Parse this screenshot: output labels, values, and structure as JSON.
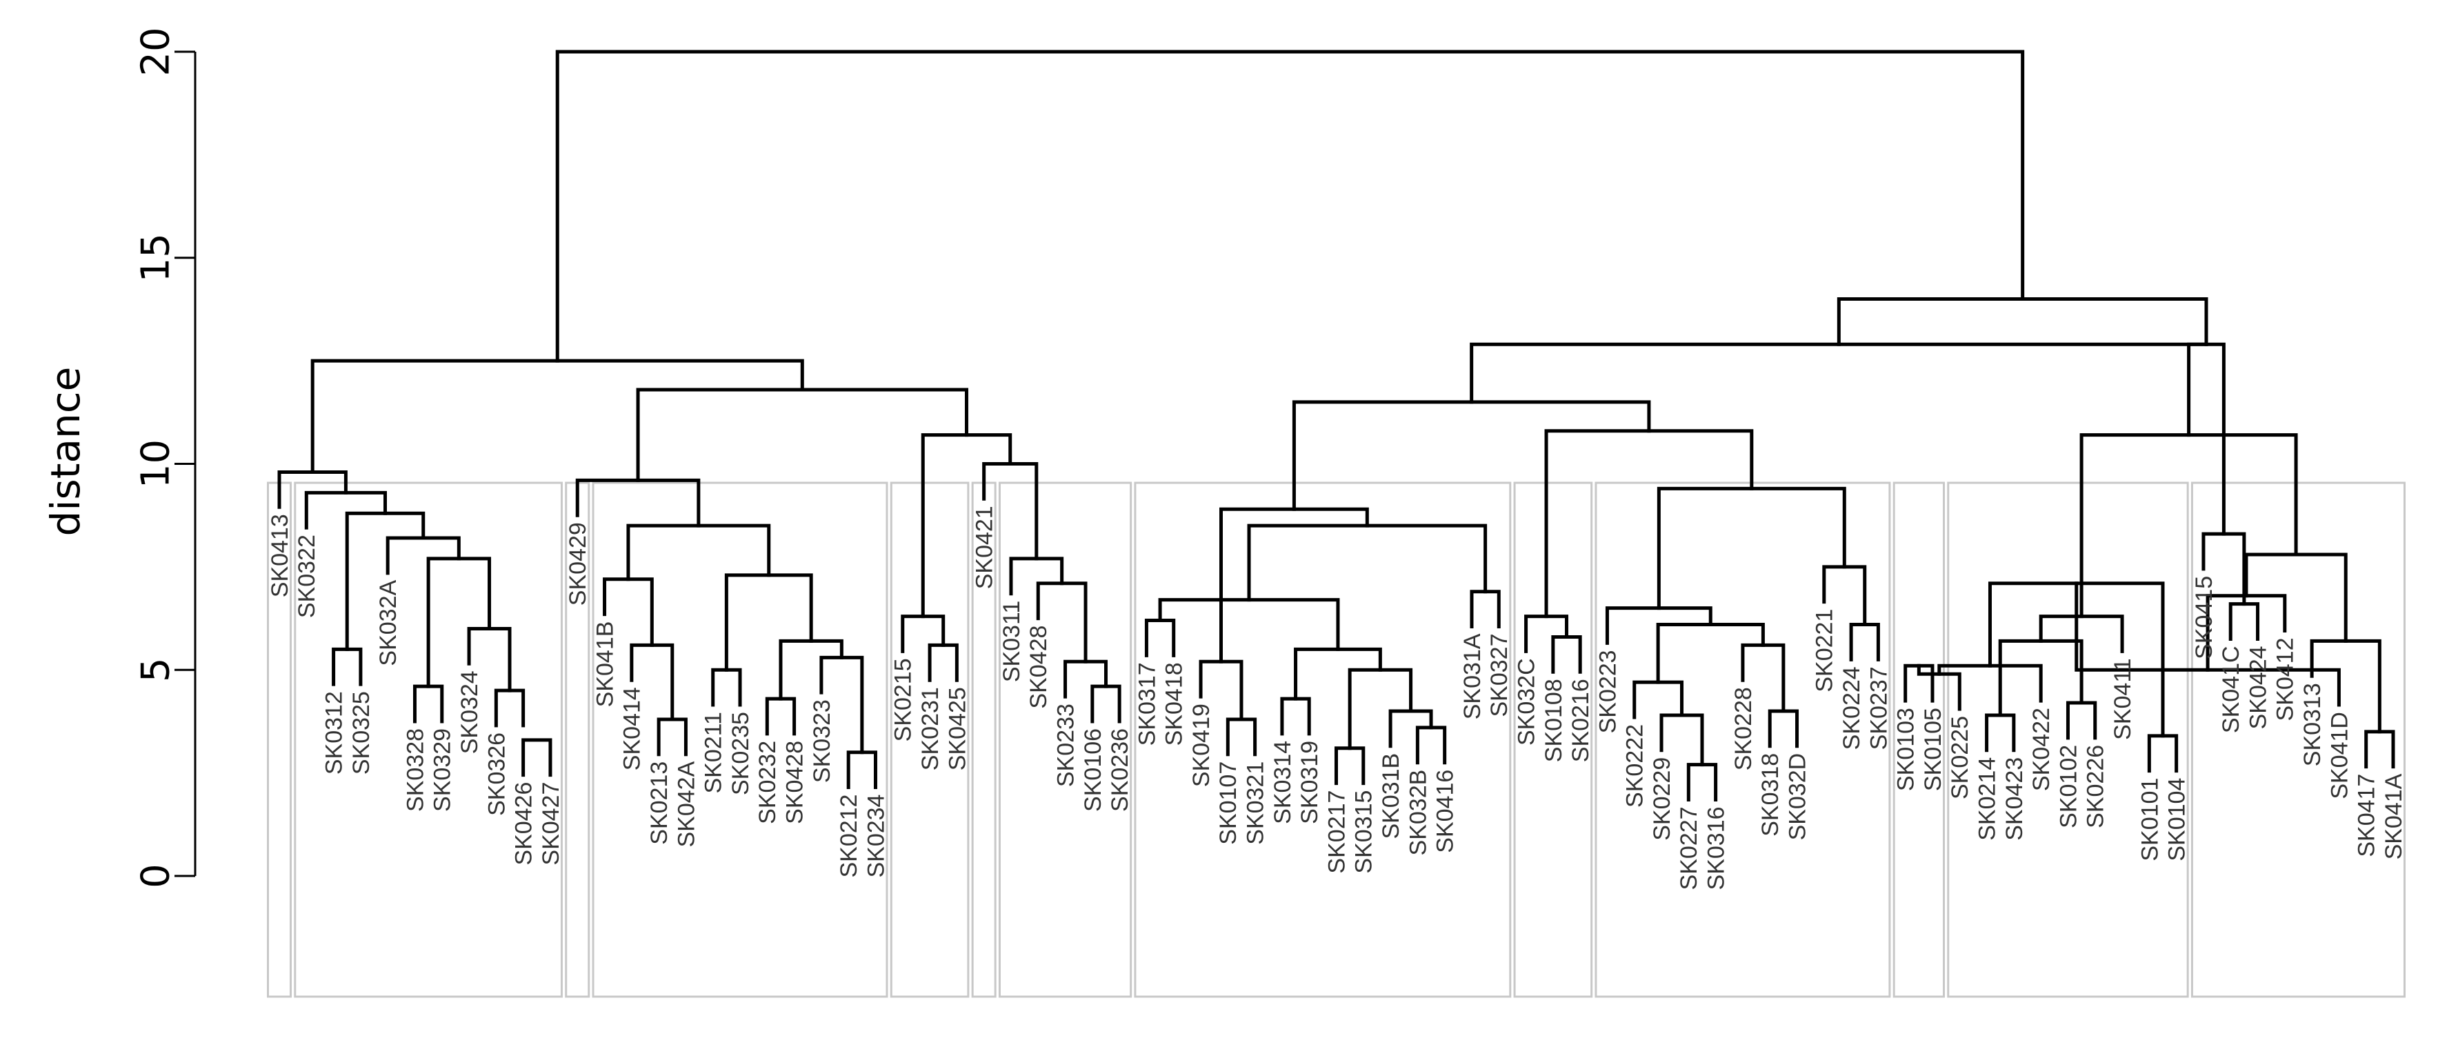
{
  "chart_data": {
    "type": "dendrogram",
    "ylabel": "distance",
    "ylim": [
      0,
      20
    ],
    "yticks": [
      0,
      5,
      10,
      15,
      20
    ],
    "leaves": [
      "SK0413",
      "SK0322",
      "SK0312",
      "SK0325",
      "SK032A",
      "SK0328",
      "SK0329",
      "SK0324",
      "SK0326",
      "SK0426",
      "SK0427",
      "SK0429",
      "SK041B",
      "SK0414",
      "SK0213",
      "SK042A",
      "SK0211",
      "SK0235",
      "SK0232",
      "SK0428",
      "SK0323",
      "SK0212",
      "SK0234",
      "SK0215",
      "SK0231",
      "SK0425",
      "SK0421",
      "SK0311",
      "SK0428",
      "SK0233",
      "SK0106",
      "SK0236",
      "SK0317",
      "SK0418",
      "SK0419",
      "SK0107",
      "SK0321",
      "SK0314",
      "SK0319",
      "SK0217",
      "SK0315",
      "SK031B",
      "SK032B",
      "SK0416",
      "SK031A",
      "SK0327",
      "SK032C",
      "SK0108",
      "SK0216",
      "SK0223",
      "SK0222",
      "SK0229",
      "SK0227",
      "SK0316",
      "SK0228",
      "SK0318",
      "SK032D",
      "SK0221",
      "SK0224",
      "SK0237",
      "SK0103",
      "SK0105",
      "SK0225",
      "SK0214",
      "SK0423",
      "SK0422",
      "SK0102",
      "SK0226",
      "SK0411",
      "SK0101",
      "SK0104",
      "SK0415",
      "SK041C",
      "SK0424",
      "SK0412",
      "SK0313",
      "SK041D",
      "SK0417",
      "SK041A"
    ],
    "merges": [
      [
        -6,
        -7,
        4.6
      ],
      [
        -9,
        -10,
        4.5
      ],
      [
        -10,
        -11,
        3.3
      ],
      [
        -3,
        -4,
        5.5
      ],
      [
        -8,
        2,
        6.0
      ],
      [
        1,
        5,
        7.7
      ],
      [
        -5,
        6,
        8.2
      ],
      [
        4,
        7,
        8.8
      ],
      [
        -2,
        8,
        9.3
      ],
      [
        -1,
        9,
        9.8
      ],
      [
        -15,
        -16,
        3.8
      ],
      [
        -14,
        11,
        5.6
      ],
      [
        -13,
        12,
        7.2
      ],
      [
        -17,
        -18,
        5.0
      ],
      [
        -22,
        -23,
        3.0
      ],
      [
        -21,
        15,
        5.3
      ],
      [
        -19,
        -20,
        4.3
      ],
      [
        17,
        16,
        5.7
      ],
      [
        14,
        18,
        7.3
      ],
      [
        13,
        19,
        8.5
      ],
      [
        -12,
        20,
        9.6
      ],
      [
        -25,
        -26,
        5.6
      ],
      [
        -24,
        22,
        6.3
      ],
      [
        -31,
        -32,
        4.6
      ],
      [
        -30,
        24,
        5.2
      ],
      [
        -29,
        25,
        7.1
      ],
      [
        -28,
        26,
        7.7
      ],
      [
        -27,
        27,
        10.0
      ],
      [
        23,
        28,
        10.7
      ],
      [
        21,
        29,
        11.8
      ],
      [
        10,
        30,
        12.5
      ],
      [
        -36,
        -37,
        3.8
      ],
      [
        -35,
        32,
        5.2
      ],
      [
        -33,
        -34,
        6.2
      ],
      [
        -43,
        -44,
        3.6
      ],
      [
        -42,
        35,
        4.0
      ],
      [
        -40,
        -41,
        3.1
      ],
      [
        37,
        36,
        5.0
      ],
      [
        -38,
        -39,
        4.3
      ],
      [
        39,
        38,
        5.5
      ],
      [
        34,
        40,
        6.7
      ],
      [
        -45,
        -46,
        6.9
      ],
      [
        41,
        42,
        8.5
      ],
      [
        33,
        43,
        8.9
      ],
      [
        -48,
        -49,
        5.8
      ],
      [
        -47,
        45,
        6.3
      ],
      [
        -53,
        -54,
        2.7
      ],
      [
        -52,
        47,
        3.9
      ],
      [
        -51,
        48,
        4.7
      ],
      [
        -56,
        -57,
        4.0
      ],
      [
        -55,
        50,
        5.6
      ],
      [
        49,
        51,
        6.1
      ],
      [
        -50,
        52,
        6.5
      ],
      [
        -59,
        -60,
        6.1
      ],
      [
        -58,
        54,
        7.5
      ],
      [
        53,
        55,
        9.4
      ],
      [
        46,
        56,
        10.8
      ],
      [
        44,
        57,
        11.5
      ],
      [
        -61,
        -62,
        5.1
      ],
      [
        -64,
        -65,
        3.9
      ],
      [
        -63,
        59,
        4.9
      ],
      [
        -67,
        -68,
        4.2
      ],
      [
        -66,
        61,
        5.1
      ],
      [
        60,
        62,
        5.7
      ],
      [
        -70,
        -71,
        3.4
      ],
      [
        -69,
        64,
        6.3
      ],
      [
        63,
        65,
        7.1
      ],
      [
        -78,
        -79,
        3.5
      ],
      [
        -77,
        67,
        5.0
      ],
      [
        -76,
        68,
        5.7
      ],
      [
        -75,
        69,
        6.8
      ],
      [
        -73,
        -74,
        6.6
      ],
      [
        71,
        70,
        7.8
      ],
      [
        -72,
        72,
        8.3
      ],
      [
        66,
        73,
        10.7
      ],
      [
        74,
        75,
        12.9
      ],
      [
        58,
        76,
        12.9
      ],
      [
        76,
        77,
        14.0
      ],
      [
        31,
        78,
        20.0
      ]
    ],
    "cluster_boxes": [
      [
        1,
        1
      ],
      [
        2,
        11
      ],
      [
        12,
        12
      ],
      [
        13,
        23
      ],
      [
        24,
        26
      ],
      [
        27,
        27
      ],
      [
        28,
        32
      ],
      [
        33,
        46
      ],
      [
        47,
        49
      ],
      [
        50,
        60
      ],
      [
        61,
        62
      ],
      [
        63,
        71
      ],
      [
        72,
        79
      ]
    ]
  }
}
